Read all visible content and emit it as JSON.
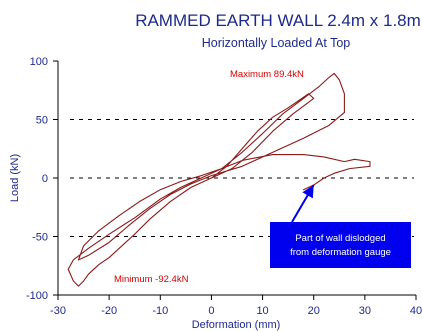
{
  "chart_data": {
    "type": "line",
    "title": "RAMMED EARTH WALL 2.4m x 1.8m",
    "subtitle": "Horizontally Loaded At Top",
    "xlabel": "Deformation (mm)",
    "ylabel": "Load (kN)",
    "xlim": [
      -30,
      40
    ],
    "ylim": [
      -100,
      100
    ],
    "x_ticks": [
      -30,
      -20,
      -10,
      0,
      10,
      20,
      30,
      40
    ],
    "y_ticks": [
      -100,
      -50,
      0,
      50,
      100
    ],
    "y_tick_labels": [
      "-100",
      "-50",
      "0",
      "50",
      "100"
    ],
    "gridlines_y": [
      -50,
      0,
      50
    ],
    "grid": "dashed horizontal lines at -50, 0 and 50",
    "series_color": "#8b1a1a",
    "series": [
      {
        "values_xy": [
          [
            0,
            0
          ],
          [
            3,
            10
          ],
          [
            6,
            25
          ],
          [
            9,
            40
          ],
          [
            12,
            52
          ],
          [
            15,
            60
          ],
          [
            17,
            66
          ],
          [
            19,
            72
          ],
          [
            20,
            68
          ],
          [
            16,
            55
          ],
          [
            12,
            40
          ],
          [
            8,
            22
          ],
          [
            4,
            8
          ],
          [
            0,
            0
          ],
          [
            -4,
            -8
          ],
          [
            -8,
            -20
          ],
          [
            -12,
            -35
          ],
          [
            -15,
            -48
          ],
          [
            -18,
            -60
          ],
          [
            -20,
            -68
          ],
          [
            -22,
            -74
          ],
          [
            -24,
            -82
          ],
          [
            -25,
            -88
          ],
          [
            -26,
            -92.4
          ],
          [
            -27,
            -88
          ],
          [
            -28,
            -78
          ],
          [
            -27,
            -70
          ],
          [
            -24,
            -60
          ],
          [
            -20,
            -48
          ],
          [
            -15,
            -34
          ],
          [
            -10,
            -18
          ],
          [
            -6,
            -8
          ],
          [
            -2,
            0
          ],
          [
            2,
            8
          ],
          [
            6,
            22
          ],
          [
            10,
            38
          ],
          [
            14,
            55
          ],
          [
            18,
            68
          ],
          [
            21,
            78
          ],
          [
            23,
            86
          ],
          [
            24,
            89.4
          ],
          [
            25,
            84
          ],
          [
            26,
            72
          ],
          [
            26,
            56
          ],
          [
            23,
            45
          ],
          [
            18,
            34
          ],
          [
            12,
            22
          ],
          [
            6,
            10
          ],
          [
            0,
            2
          ],
          [
            -4,
            -5
          ],
          [
            -8,
            -14
          ],
          [
            -12,
            -26
          ],
          [
            -16,
            -40
          ],
          [
            -20,
            -55
          ],
          [
            -24,
            -66
          ],
          [
            -26,
            -70
          ],
          [
            -25,
            -58
          ],
          [
            -22,
            -45
          ],
          [
            -18,
            -32
          ],
          [
            -14,
            -20
          ],
          [
            -10,
            -10
          ],
          [
            -6,
            -3
          ],
          [
            -2,
            2
          ],
          [
            2,
            8
          ],
          [
            6,
            15
          ],
          [
            12,
            20
          ],
          [
            18,
            20
          ],
          [
            22,
            18
          ],
          [
            26,
            14
          ],
          [
            28,
            16
          ],
          [
            31,
            14
          ],
          [
            31,
            10
          ],
          [
            27,
            8
          ],
          [
            24,
            4
          ],
          [
            22,
            0
          ],
          [
            20,
            -6
          ],
          [
            18,
            -10
          ]
        ]
      }
    ],
    "annotations": {
      "maximum": {
        "text": "Maximum 89.4kN",
        "x": 24,
        "y": 89.4
      },
      "minimum": {
        "text": "Minimum -92.4kN",
        "x": -26,
        "y": -92.4
      },
      "callout": {
        "text_line1": "Part of wall dislodged",
        "text_line2": "from deformation gauge",
        "arrow_target": {
          "x": 20,
          "y": -6
        }
      }
    },
    "colors": {
      "title": "#1e2a8a",
      "axes": "#000000",
      "series": "#8b1a1a",
      "annotation_red": "#d40000",
      "callout_fill": "#0000ee"
    }
  }
}
